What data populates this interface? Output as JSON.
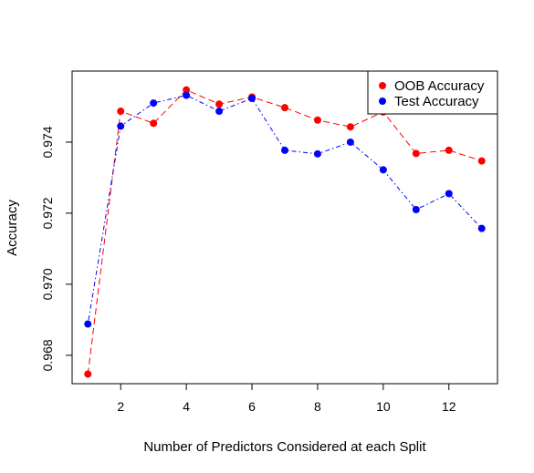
{
  "chart_data": {
    "type": "line",
    "title": "",
    "xlabel": "Number of Predictors Considered at each Split",
    "ylabel": "Accuracy",
    "xlim": [
      0.52,
      13.48
    ],
    "ylim": [
      0.9672,
      0.976
    ],
    "x_ticks": [
      2,
      4,
      6,
      8,
      10,
      12
    ],
    "y_ticks": [
      0.968,
      0.97,
      0.972,
      0.974
    ],
    "x_tick_labels": [
      "2",
      "4",
      "6",
      "8",
      "10",
      "12"
    ],
    "y_tick_labels": [
      "0.968",
      "0.970",
      "0.972",
      "0.974"
    ],
    "legend_position": "top-right",
    "grid": false,
    "x": [
      1,
      2,
      3,
      4,
      5,
      6,
      7,
      8,
      9,
      10,
      11,
      12,
      13
    ],
    "series": [
      {
        "name": "OOB Accuracy",
        "color": "#ff0000",
        "line_style": "dashed",
        "values": [
          0.96747,
          0.97487,
          0.97453,
          0.97547,
          0.97507,
          0.97527,
          0.97497,
          0.97462,
          0.97443,
          0.97485,
          0.97368,
          0.97377,
          0.97347
        ]
      },
      {
        "name": "Test Accuracy",
        "color": "#0000ff",
        "line_style": "dotdash",
        "values": [
          0.96888,
          0.97445,
          0.9751,
          0.97532,
          0.97487,
          0.97523,
          0.97377,
          0.97367,
          0.974,
          0.97322,
          0.9721,
          0.97255,
          0.97157
        ]
      }
    ]
  }
}
